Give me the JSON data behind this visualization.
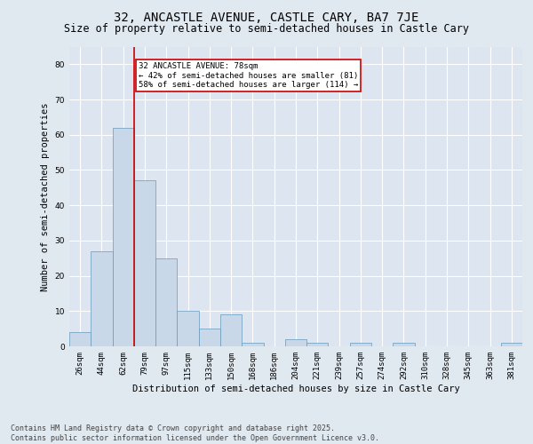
{
  "title": "32, ANCASTLE AVENUE, CASTLE CARY, BA7 7JE",
  "subtitle": "Size of property relative to semi-detached houses in Castle Cary",
  "xlabel": "Distribution of semi-detached houses by size in Castle Cary",
  "ylabel": "Number of semi-detached properties",
  "categories": [
    "26sqm",
    "44sqm",
    "62sqm",
    "79sqm",
    "97sqm",
    "115sqm",
    "133sqm",
    "150sqm",
    "168sqm",
    "186sqm",
    "204sqm",
    "221sqm",
    "239sqm",
    "257sqm",
    "274sqm",
    "292sqm",
    "310sqm",
    "328sqm",
    "345sqm",
    "363sqm",
    "381sqm"
  ],
  "values": [
    4,
    27,
    62,
    47,
    25,
    10,
    5,
    9,
    1,
    0,
    2,
    1,
    0,
    1,
    0,
    1,
    0,
    0,
    0,
    0,
    1
  ],
  "bar_color": "#c8d8e8",
  "bar_edge_color": "#6699bb",
  "ylim": [
    0,
    85
  ],
  "yticks": [
    0,
    10,
    20,
    30,
    40,
    50,
    60,
    70,
    80
  ],
  "vline_color": "#cc0000",
  "annotation_box_color": "#cc0000",
  "annotation_text_line1": "32 ANCASTLE AVENUE: 78sqm",
  "annotation_text_line2": "← 42% of semi-detached houses are smaller (81)",
  "annotation_text_line3": "58% of semi-detached houses are larger (114) →",
  "footer_line1": "Contains HM Land Registry data © Crown copyright and database right 2025.",
  "footer_line2": "Contains public sector information licensed under the Open Government Licence v3.0.",
  "background_color": "#e0e8f0",
  "plot_background_color": "#dde6f0",
  "grid_color": "#ffffff",
  "title_fontsize": 10,
  "subtitle_fontsize": 8.5,
  "axis_label_fontsize": 7.5,
  "tick_fontsize": 6.5,
  "annotation_fontsize": 6.5,
  "footer_fontsize": 6
}
